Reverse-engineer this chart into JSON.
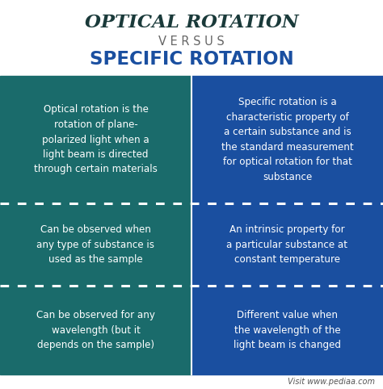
{
  "title_line1": "OPTICAL ROTATION",
  "title_line2": "V E R S U S",
  "title_line3": "SPECIFIC ROTATION",
  "bg_color": "#ffffff",
  "left_color": "#1a6b6b",
  "right_color": "#1a4fa0",
  "left_texts": [
    "Optical rotation is the\nrotation of plane-\npolarized light when a\nlight beam is directed\nthrough certain materials",
    "Can be observed when\nany type of substance is\nused as the sample",
    "Can be observed for any\nwavelength (but it\ndepends on the sample)"
  ],
  "right_texts": [
    "Specific rotation is a\ncharacteristic property of\na certain substance and is\nthe standard measurement\nfor optical rotation for that\nsubstance",
    "An intrinsic property for\na particular substance at\nconstant temperature",
    "Different value when\nthe wavelength of the\nlight beam is changed"
  ],
  "footer_text": "Visit www.pediaa.com",
  "text_color": "#ffffff",
  "title1_color": "#1a3a3a",
  "title2_color": "#666666",
  "title3_color": "#1a4fa0"
}
